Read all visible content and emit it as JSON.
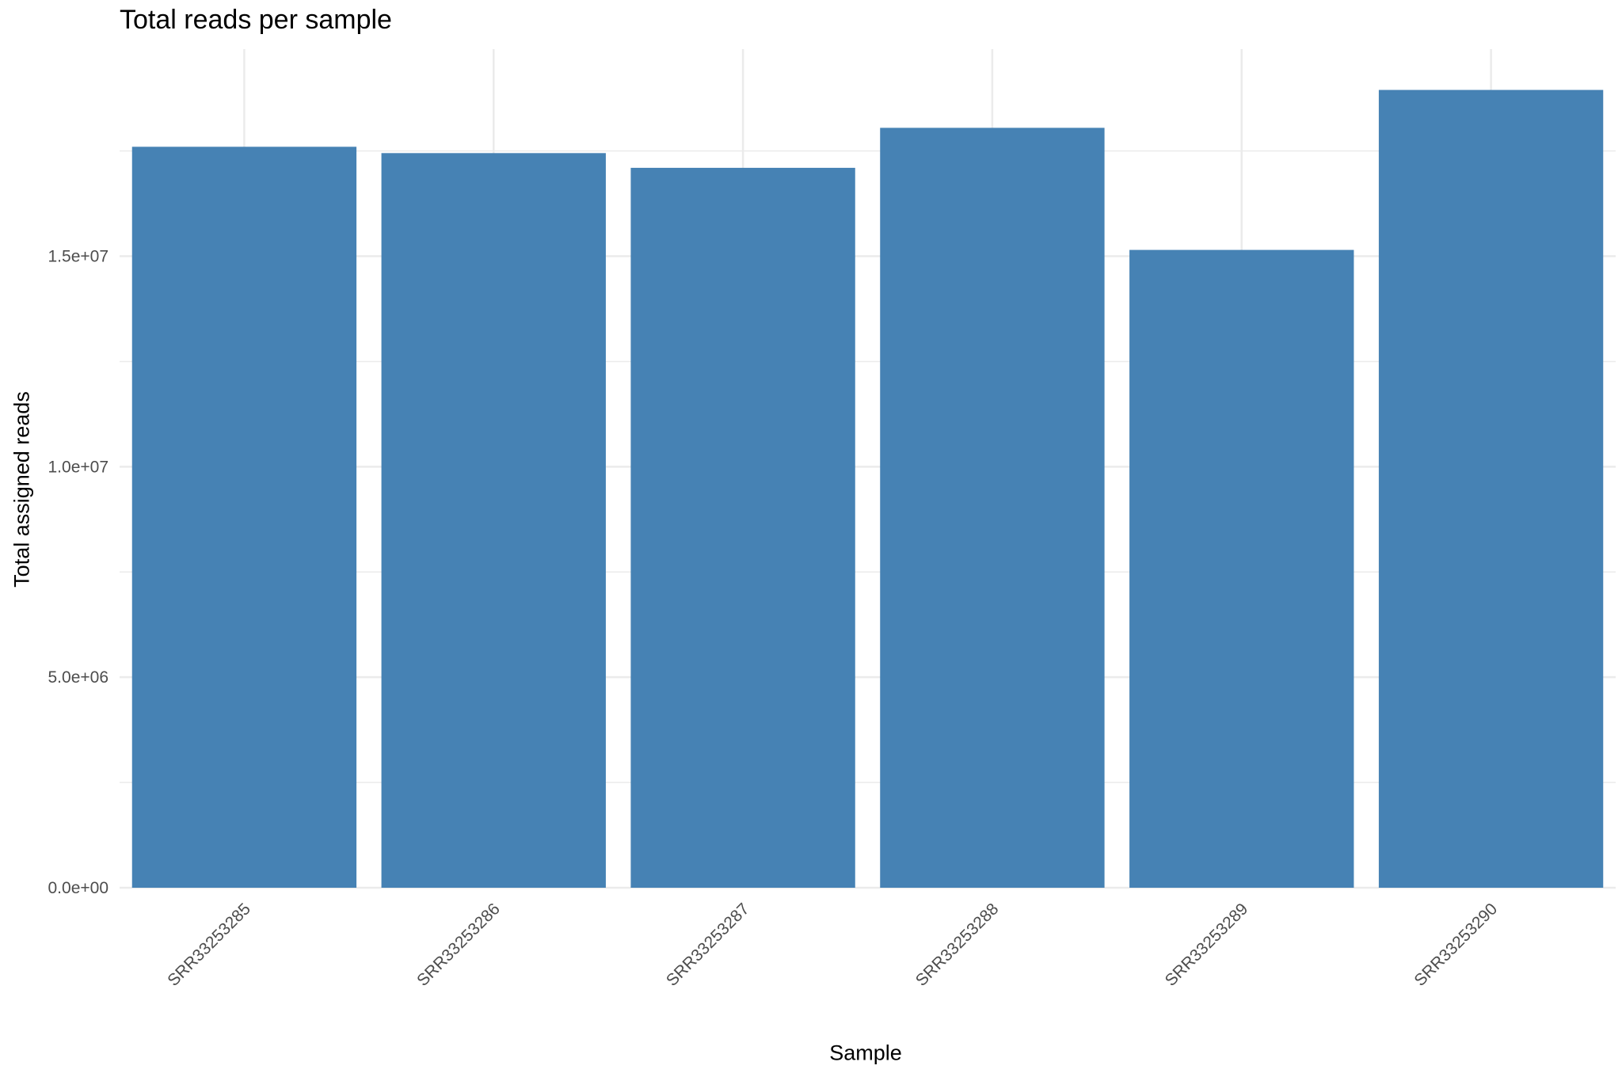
{
  "chart_data": {
    "type": "bar",
    "title": "Total reads per sample",
    "xlabel": "Sample",
    "ylabel": "Total assigned reads",
    "categories": [
      "SRR33253285",
      "SRR33253286",
      "SRR33253287",
      "SRR33253288",
      "SRR33253289",
      "SRR33253290"
    ],
    "values": [
      17600000,
      17450000,
      17100000,
      18050000,
      15150000,
      18950000
    ],
    "ylim": [
      0,
      19920000
    ],
    "yticks": [
      0,
      5000000,
      10000000,
      15000000
    ],
    "ytick_labels": [
      "0.0e+00",
      "5.0e+06",
      "1.0e+07",
      "1.5e+07"
    ],
    "bar_color": "#4682B4",
    "grid": true,
    "grid_color": "#EBEBEB",
    "legend": "none"
  }
}
